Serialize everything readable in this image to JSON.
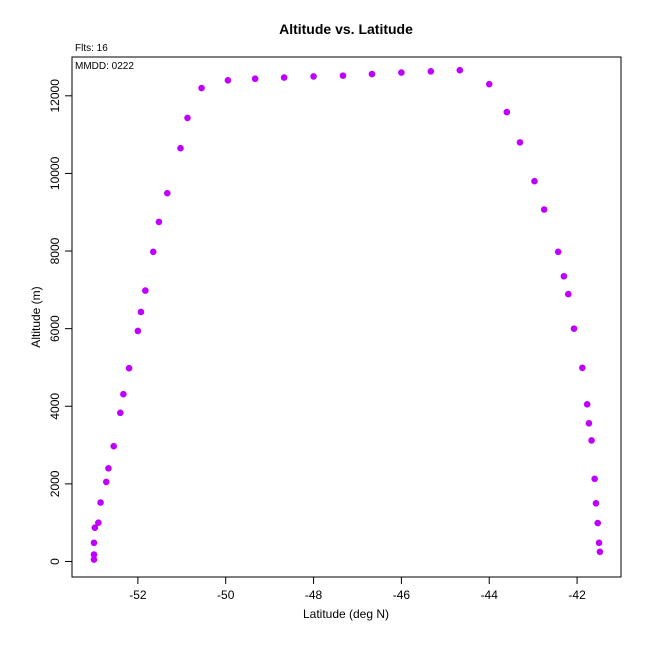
{
  "chart_data": {
    "type": "scatter",
    "title": "Altitude vs. Latitude",
    "subtitle": "Flts: 16",
    "annotation": "MMDD: 0222",
    "xlabel": "Latitude (deg N)",
    "ylabel": "Altitude (m)",
    "xlim": [
      -53.5,
      -41.0
    ],
    "ylim": [
      -400,
      13000
    ],
    "xticks": [
      -52,
      -50,
      -48,
      -46,
      -44,
      -42
    ],
    "yticks": [
      0,
      2000,
      4000,
      6000,
      8000,
      10000,
      12000
    ],
    "grid": false,
    "point_color": "#bf00ff",
    "x": [
      -53.0,
      -53.0,
      -53.0,
      -52.98,
      -52.9,
      -52.85,
      -52.72,
      -52.67,
      -52.55,
      -52.4,
      -52.33,
      -52.2,
      -52.0,
      -51.93,
      -51.83,
      -51.65,
      -51.52,
      -51.33,
      -51.03,
      -50.87,
      -50.55,
      -49.95,
      -49.33,
      -48.67,
      -48.0,
      -47.33,
      -46.67,
      -46.0,
      -45.33,
      -44.67,
      -44.0,
      -43.6,
      -43.3,
      -42.97,
      -42.75,
      -42.43,
      -42.3,
      -42.2,
      -42.07,
      -41.88,
      -41.77,
      -41.73,
      -41.67,
      -41.6,
      -41.57,
      -41.53,
      -41.5,
      -41.48
    ],
    "y": [
      50,
      180,
      480,
      870,
      1000,
      1520,
      2050,
      2400,
      2970,
      3830,
      4310,
      4980,
      5940,
      6430,
      6980,
      7980,
      8750,
      9490,
      10650,
      11430,
      12200,
      12400,
      12440,
      12470,
      12500,
      12520,
      12560,
      12600,
      12630,
      12660,
      12300,
      11580,
      10800,
      9800,
      9070,
      7980,
      7350,
      6890,
      6000,
      4990,
      4050,
      3560,
      3120,
      2130,
      1500,
      990,
      480,
      250
    ]
  }
}
